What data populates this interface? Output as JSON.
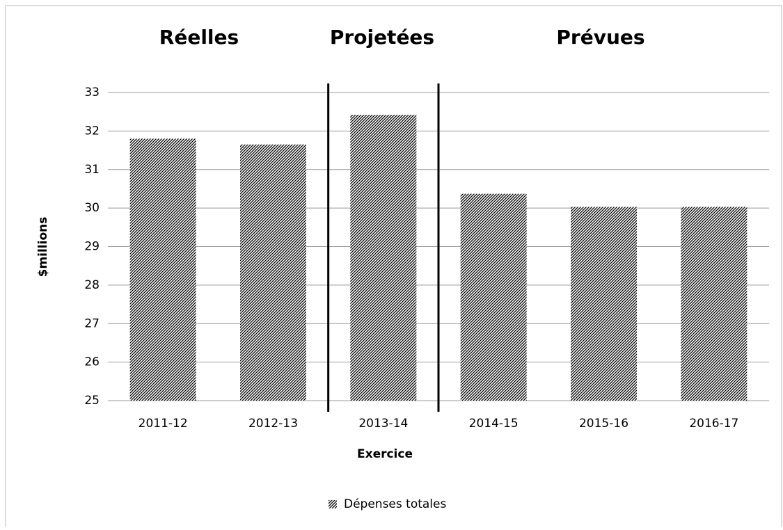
{
  "chart_data": {
    "type": "bar",
    "annotations": [
      "Réelles",
      "Projetées",
      "Prévues"
    ],
    "categories": [
      "2011-12",
      "2012-13",
      "2013-14",
      "2014-15",
      "2015-16",
      "2016-17"
    ],
    "series": [
      {
        "name": "Dépenses totales",
        "color": "#000000",
        "values": [
          31.8,
          31.65,
          32.42,
          30.37,
          30.03,
          30.03
        ]
      }
    ],
    "x_label": "Exercice",
    "y_label": "$millions",
    "ylim": [
      25,
      33
    ],
    "yticks": [
      25,
      26,
      27,
      28,
      29,
      30,
      31,
      32,
      33
    ],
    "grid": true,
    "legend": "bottom"
  }
}
